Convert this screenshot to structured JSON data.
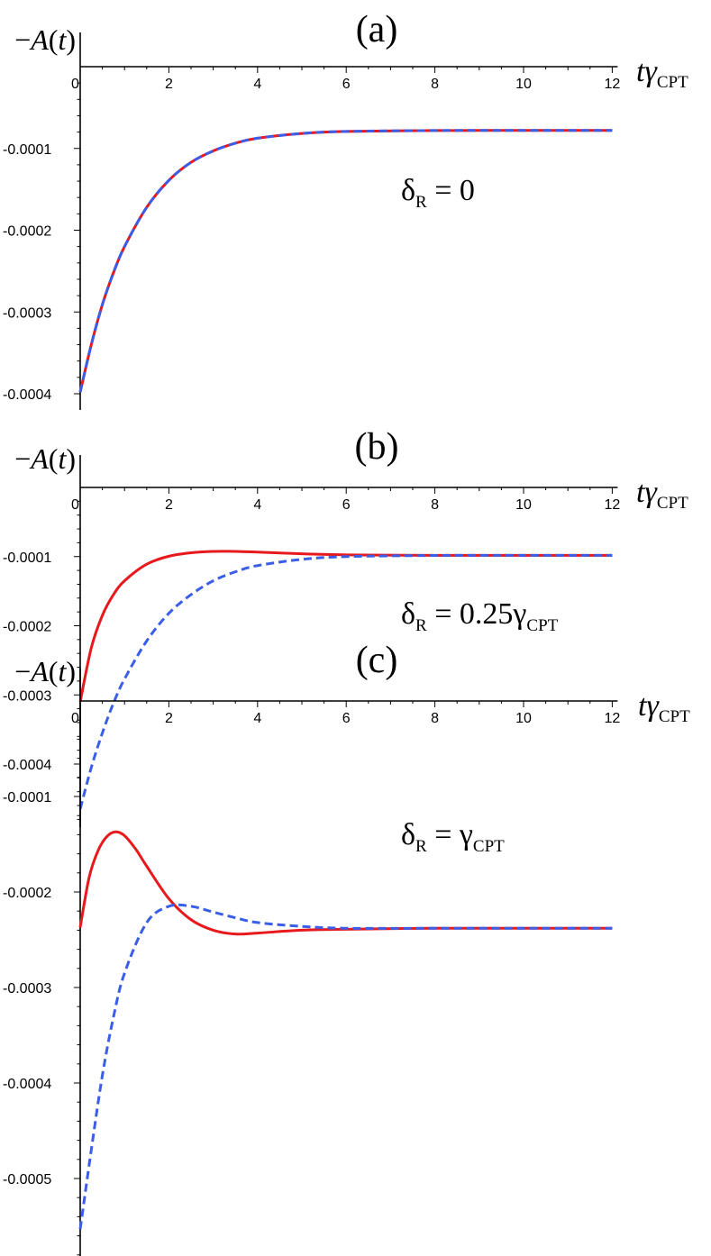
{
  "chart_data": [
    {
      "type": "line",
      "title": "(a)",
      "ylabel": "−A(t)",
      "xlabel_main": "tγ",
      "xlabel_sub": "CPT",
      "annotation_main": "δ",
      "annotation_sub": "R",
      "annotation_rest": " = 0",
      "xlim": [
        0,
        12
      ],
      "ylim": [
        -0.00042,
        0
      ],
      "xticks": [
        0,
        2,
        4,
        6,
        8,
        10,
        12
      ],
      "xtick_labels": [
        "0",
        "2",
        "4",
        "6",
        "8",
        "10",
        "12"
      ],
      "yticks": [
        -0.0001,
        -0.0002,
        -0.0003,
        -0.0004
      ],
      "ytick_labels": [
        "-0.0001",
        "-0.0002",
        "-0.0003",
        "-0.0004"
      ],
      "series": [
        {
          "color": "#e8191c",
          "style": "solid",
          "x": [
            0,
            0.25,
            0.5,
            0.75,
            1,
            1.5,
            2,
            2.5,
            3,
            3.5,
            4,
            5,
            6,
            8,
            10,
            12
          ],
          "y": [
            -0.000398,
            -0.00034,
            -0.000291,
            -0.000252,
            -0.00022,
            -0.000172,
            -0.000139,
            -0.000117,
            -0.000103,
            -9.36e-05,
            -8.75e-05,
            -8.17e-05,
            -7.92e-05,
            -7.81e-05,
            -7.8e-05,
            -7.8e-05
          ]
        },
        {
          "color": "#3a5ee8",
          "style": "dashed",
          "x": [
            0,
            0.25,
            0.5,
            0.75,
            1,
            1.5,
            2,
            2.5,
            3,
            3.5,
            4,
            5,
            6,
            8,
            10,
            12
          ],
          "y": [
            -0.000398,
            -0.00034,
            -0.000291,
            -0.000252,
            -0.00022,
            -0.000172,
            -0.000139,
            -0.000117,
            -0.000103,
            -9.36e-05,
            -8.75e-05,
            -8.17e-05,
            -7.92e-05,
            -7.81e-05,
            -7.8e-05,
            -7.8e-05
          ]
        }
      ]
    },
    {
      "type": "line",
      "title": "(b)",
      "ylabel": "−A(t)",
      "xlabel_main": "tγ",
      "xlabel_sub": "CPT",
      "annotation_main": "δ",
      "annotation_sub": "R",
      "annotation_rest": " = 0.25γ",
      "annotation_sub2": "CPT",
      "xlim": [
        0,
        12
      ],
      "ylim": [
        -0.00048,
        0
      ],
      "xticks": [
        0,
        2,
        4,
        6,
        8,
        10,
        12
      ],
      "xtick_labels": [
        "0",
        "2",
        "4",
        "6",
        "8",
        "10",
        "12"
      ],
      "yticks": [
        -0.0001,
        -0.0002,
        -0.0003,
        -0.0004
      ],
      "ytick_labels": [
        "-0.0001",
        "-0.0002",
        "-0.0003",
        "-0.0004"
      ],
      "series": [
        {
          "color": "#e8191c",
          "style": "solid",
          "x": [
            0,
            0.25,
            0.5,
            0.75,
            1,
            1.5,
            2,
            2.5,
            3,
            3.5,
            4,
            5,
            6,
            8,
            10,
            12
          ],
          "y": [
            -0.00031,
            -0.000232,
            -0.000185,
            -0.000155,
            -0.000135,
            -0.000111,
            -9.95e-05,
            -9.45e-05,
            -9.25e-05,
            -9.25e-05,
            -9.35e-05,
            -9.6e-05,
            -9.75e-05,
            -9.82e-05,
            -9.82e-05,
            -9.82e-05
          ]
        },
        {
          "color": "#3a5ee8",
          "style": "dashed",
          "x": [
            0,
            0.25,
            0.5,
            0.75,
            1,
            1.5,
            2,
            2.5,
            3,
            3.5,
            4,
            5,
            6,
            8,
            10,
            12
          ],
          "y": [
            -0.000465,
            -0.000405,
            -0.000355,
            -0.000312,
            -0.000277,
            -0.000222,
            -0.000182,
            -0.000155,
            -0.000135,
            -0.000122,
            -0.000113,
            -0.000104,
            -0.0001,
            -9.84e-05,
            -9.82e-05,
            -9.82e-05
          ]
        }
      ]
    },
    {
      "type": "line",
      "title": "(c)",
      "ylabel": "−A(t)",
      "xlabel_main": "tγ",
      "xlabel_sub": "CPT",
      "annotation_main": "δ",
      "annotation_sub": "R",
      "annotation_rest": " = γ",
      "annotation_sub2": "CPT",
      "xlim": [
        0,
        12
      ],
      "ylim": [
        -0.00059,
        0
      ],
      "xticks": [
        0,
        2,
        4,
        6,
        8,
        10,
        12
      ],
      "xtick_labels": [
        "0",
        "2",
        "4",
        "6",
        "8",
        "10",
        "12"
      ],
      "yticks": [
        -0.0001,
        -0.0002,
        -0.0003,
        -0.0004,
        -0.0005
      ],
      "ytick_labels": [
        "-0.0001",
        "-0.0002",
        "-0.0003",
        "-0.0004",
        "-0.0005"
      ],
      "series": [
        {
          "color": "#e8191c",
          "style": "solid",
          "x": [
            0,
            0.2,
            0.4,
            0.6,
            0.8,
            1,
            1.25,
            1.5,
            2,
            2.5,
            3,
            3.5,
            4,
            5,
            6,
            8,
            10,
            12
          ],
          "y": [
            -0.000237,
            -0.000185,
            -0.000157,
            -0.000142,
            -0.000137,
            -0.000141,
            -0.000155,
            -0.000173,
            -0.000207,
            -0.000229,
            -0.00024,
            -0.000244,
            -0.000243,
            -0.00024,
            -0.000239,
            -0.000238,
            -0.000238,
            -0.000238
          ]
        },
        {
          "color": "#3a5ee8",
          "style": "dashed",
          "x": [
            0,
            0.25,
            0.5,
            0.75,
            1,
            1.5,
            2,
            2.5,
            3,
            3.5,
            4,
            5,
            6,
            8,
            10,
            12
          ],
          "y": [
            -0.000553,
            -0.00047,
            -0.000392,
            -0.000331,
            -0.000285,
            -0.000232,
            -0.000215,
            -0.000215,
            -0.000221,
            -0.000227,
            -0.000232,
            -0.000236,
            -0.000238,
            -0.000238,
            -0.000238,
            -0.000238
          ]
        }
      ]
    }
  ]
}
